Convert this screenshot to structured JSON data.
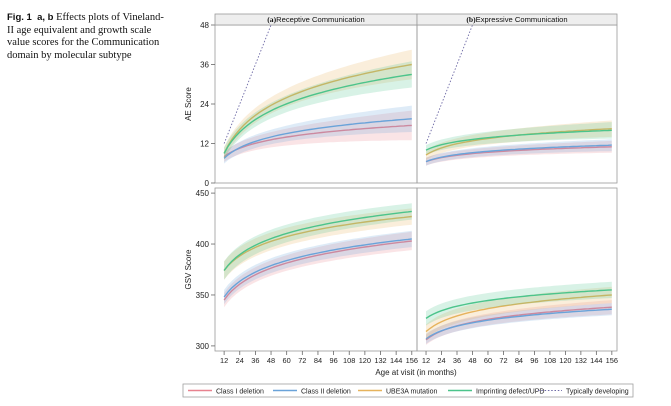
{
  "caption": {
    "label": "Fig. 1",
    "parts": "a, b",
    "text": "Effects plots of Vineland-II age equivalent and growth scale value scores for the Communication domain by molecular subtype"
  },
  "chart_data": {
    "type": "line",
    "x_axis": {
      "label": "Age at visit (in months)",
      "ticks": [
        12,
        24,
        36,
        48,
        60,
        72,
        84,
        96,
        108,
        120,
        132,
        144,
        156
      ],
      "range": [
        5,
        160
      ]
    },
    "panels": {
      "receptive": {
        "label": "(a)",
        "title": "Receptive Communication"
      },
      "expressive": {
        "label": "(b)",
        "title": "Expressive Communication"
      }
    },
    "rows": [
      {
        "ylabel": "AE Score",
        "ylim": [
          0,
          48
        ],
        "yticks": [
          0,
          12,
          24,
          36,
          48
        ],
        "reference": {
          "name": "Typically developing",
          "receptive": [
            [
              12,
              12
            ],
            [
              48,
              48
            ]
          ],
          "expressive": [
            [
              12,
              12
            ],
            [
              48,
              48
            ]
          ]
        },
        "receptive": [
          {
            "name": "Class I deletion",
            "x0": 12,
            "y0": 8.0,
            "y1": 17.5,
            "band0": 1.6,
            "band1": 4.5
          },
          {
            "name": "Class II deletion",
            "x0": 12,
            "y0": 7.5,
            "y1": 19.5,
            "band0": 1.6,
            "band1": 4.0
          },
          {
            "name": "UBE3A mutation",
            "x0": 12,
            "y0": 9.0,
            "y1": 36.0,
            "band0": 1.8,
            "band1": 4.5
          },
          {
            "name": "Imprinting defect/UPD",
            "x0": 12,
            "y0": 9.0,
            "y1": 33.0,
            "band0": 1.8,
            "band1": 4.0
          }
        ],
        "expressive": [
          {
            "name": "Class I deletion",
            "x0": 12,
            "y0": 6.5,
            "y1": 11.0,
            "band0": 1.2,
            "band1": 1.8
          },
          {
            "name": "Class II deletion",
            "x0": 12,
            "y0": 6.5,
            "y1": 11.5,
            "band0": 1.2,
            "band1": 1.8
          },
          {
            "name": "UBE3A mutation",
            "x0": 12,
            "y0": 8.5,
            "y1": 16.5,
            "band0": 1.5,
            "band1": 2.5
          },
          {
            "name": "Imprinting defect/UPD",
            "x0": 12,
            "y0": 10.0,
            "y1": 16.0,
            "band0": 1.5,
            "band1": 2.5
          }
        ]
      },
      {
        "ylabel": "GSV Score",
        "ylim": [
          295,
          455
        ],
        "yticks": [
          300,
          350,
          400,
          450
        ],
        "receptive": [
          {
            "name": "Class I deletion",
            "x0": 12,
            "y0": 345,
            "y1": 403,
            "band0": 7,
            "band1": 9
          },
          {
            "name": "Class II deletion",
            "x0": 12,
            "y0": 348,
            "y1": 405,
            "band0": 7,
            "band1": 8
          },
          {
            "name": "UBE3A mutation",
            "x0": 12,
            "y0": 374,
            "y1": 427,
            "band0": 9,
            "band1": 8
          },
          {
            "name": "Imprinting defect/UPD",
            "x0": 12,
            "y0": 374,
            "y1": 432,
            "band0": 9,
            "band1": 8
          }
        ],
        "expressive": [
          {
            "name": "Class I deletion",
            "x0": 12,
            "y0": 306,
            "y1": 338,
            "band0": 5,
            "band1": 7
          },
          {
            "name": "Class II deletion",
            "x0": 12,
            "y0": 307,
            "y1": 336,
            "band0": 5,
            "band1": 6
          },
          {
            "name": "UBE3A mutation",
            "x0": 12,
            "y0": 314,
            "y1": 350,
            "band0": 7,
            "band1": 8
          },
          {
            "name": "Imprinting defect/UPD",
            "x0": 12,
            "y0": 327,
            "y1": 355,
            "band0": 7,
            "band1": 8
          }
        ]
      }
    ],
    "series_colors": {
      "Class I deletion": "#e8828f",
      "Class II deletion": "#6aa3d9",
      "UBE3A mutation": "#e6b35c",
      "Imprinting defect/UPD": "#4cc48b",
      "Typically developing": "#6e6aa6"
    },
    "legend": [
      {
        "name": "Class I deletion",
        "style": "solid"
      },
      {
        "name": "Class II deletion",
        "style": "solid"
      },
      {
        "name": "UBE3A mutation",
        "style": "solid"
      },
      {
        "name": "Imprinting defect/UPD",
        "style": "solid"
      },
      {
        "name": "Typically developing",
        "style": "dotted"
      }
    ],
    "legend_position": "bottom"
  }
}
